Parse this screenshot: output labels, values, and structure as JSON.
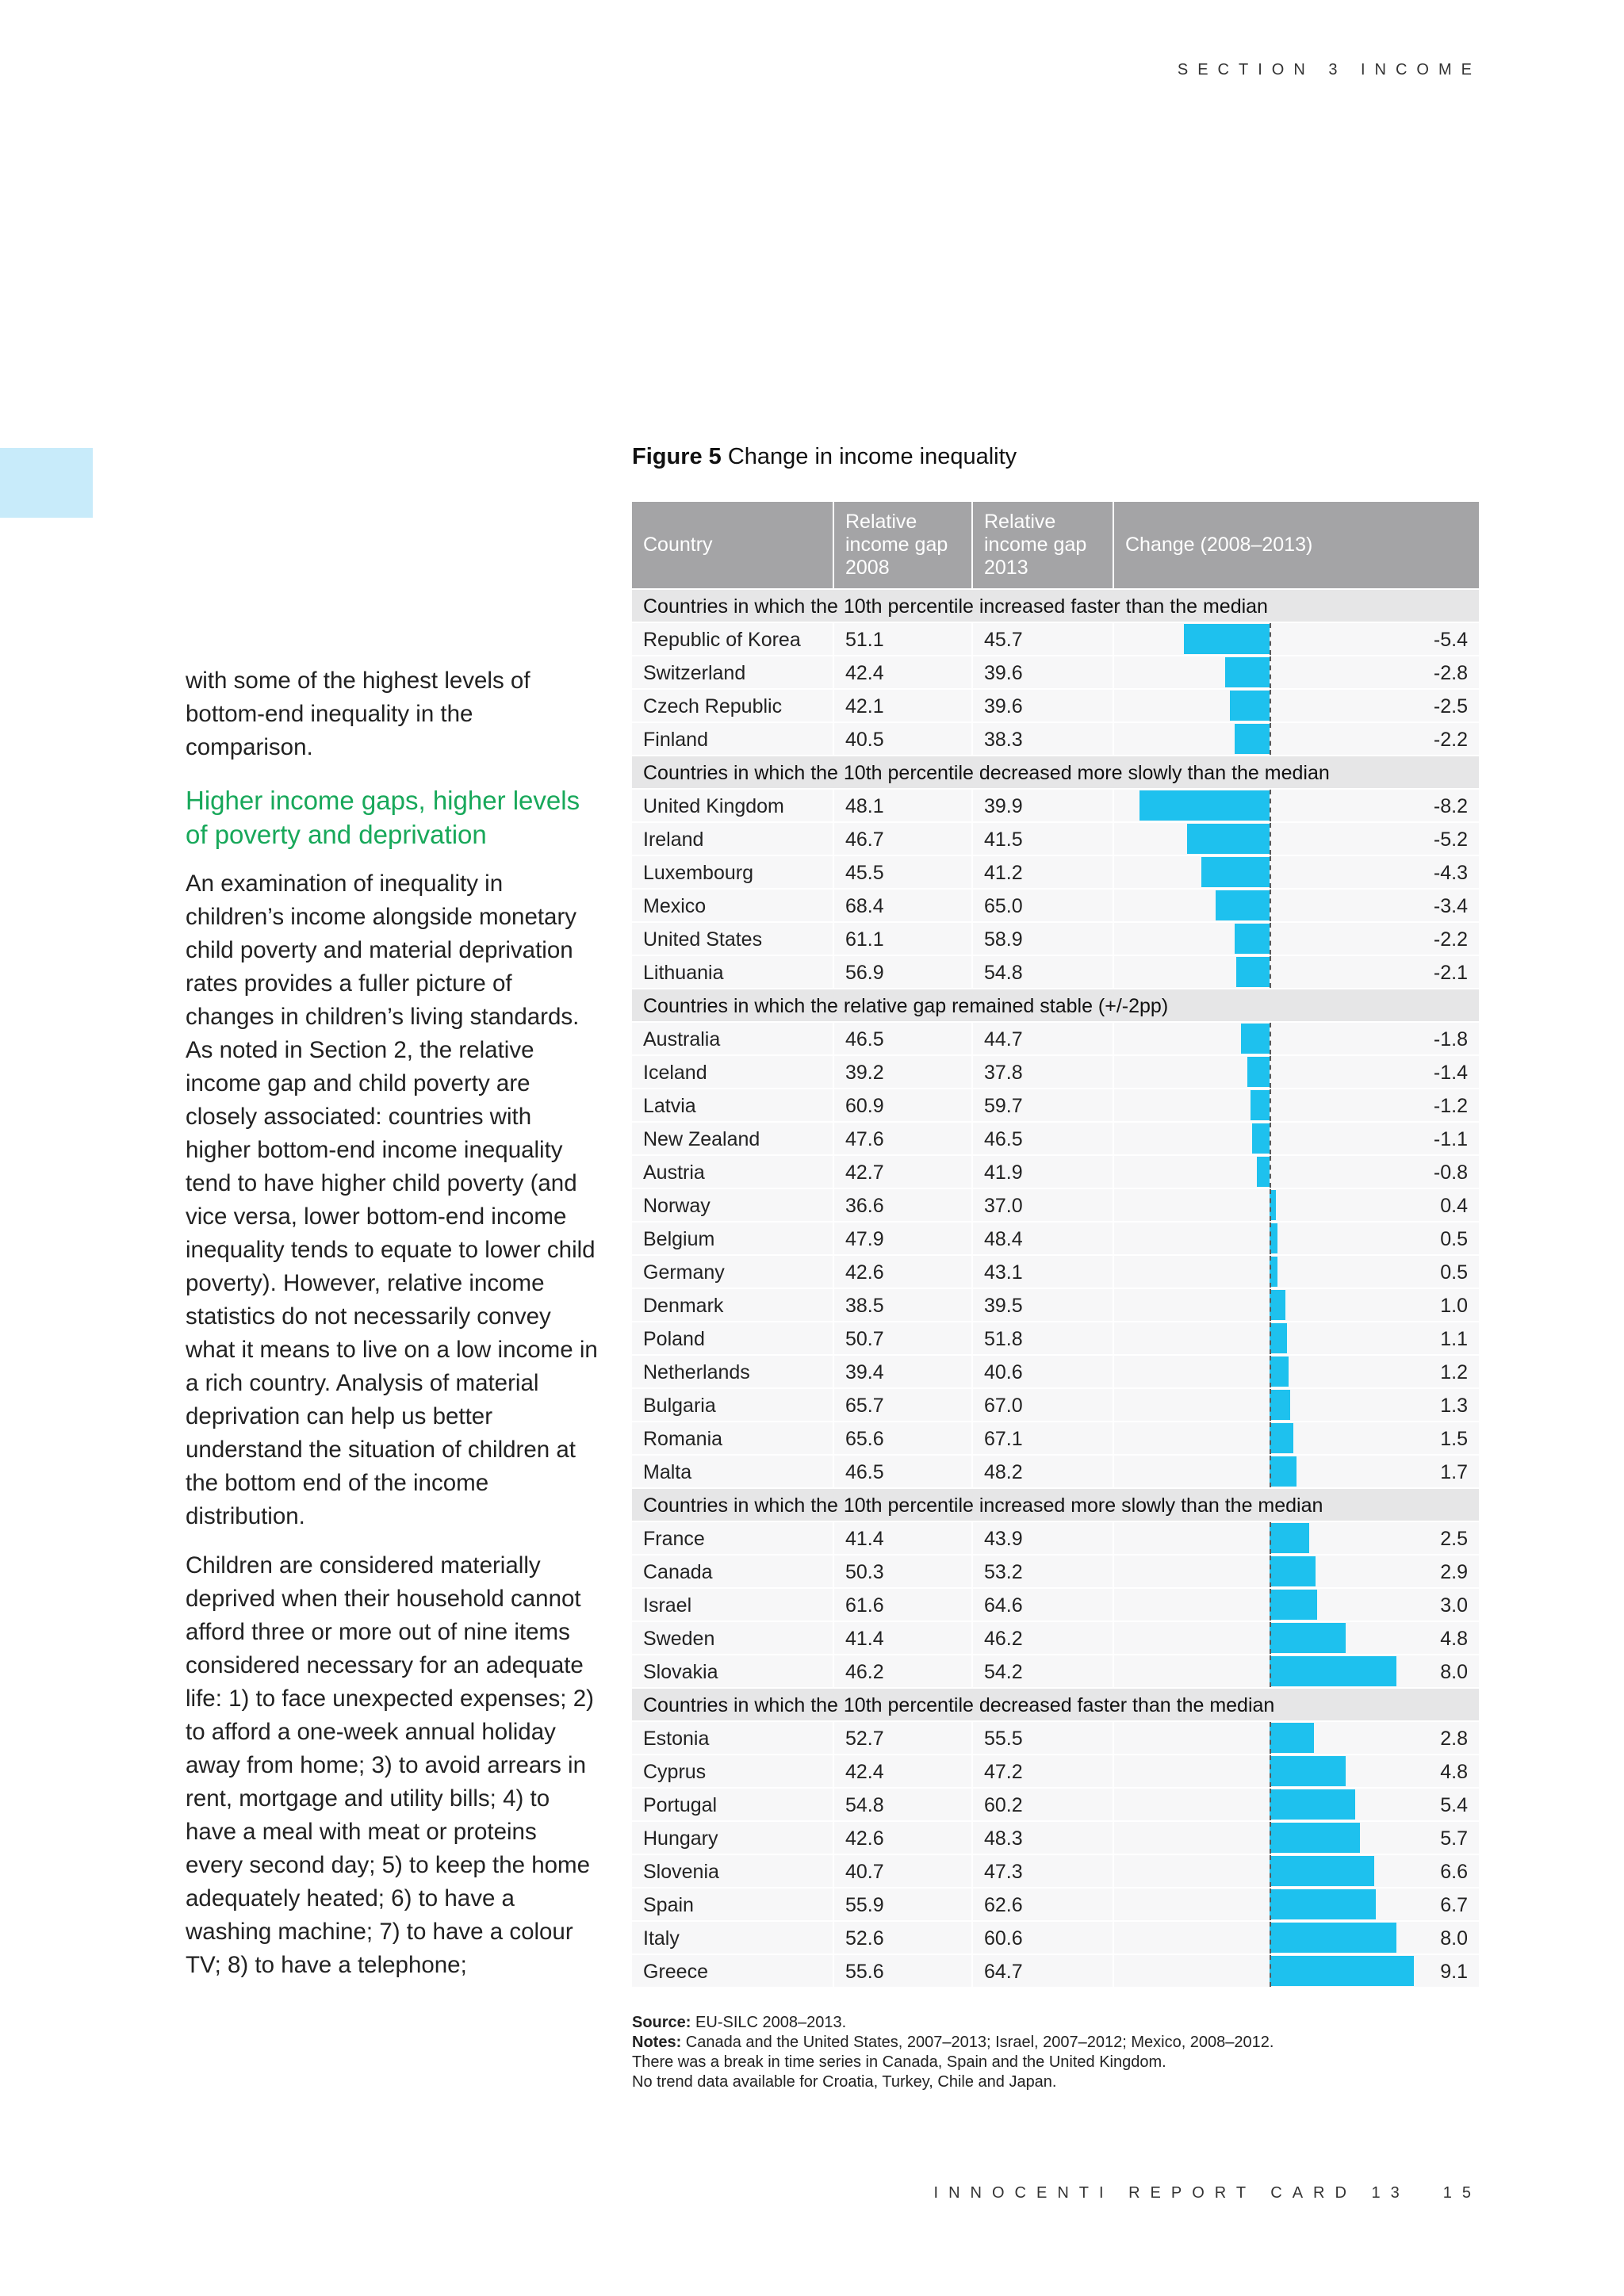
{
  "running_head": "SECTION 3 INCOME",
  "body_text": {
    "p1": "with some of the highest levels of bottom-end inequality in the comparison.",
    "heading": "Higher income gaps, higher levels of poverty and deprivation",
    "p2": "An examination of inequality in children’s income alongside monetary child poverty and material deprivation rates provides a fuller picture of changes in children’s living standards. As noted in Section 2, the relative income gap and child poverty are closely associated: countries with higher bottom-end income inequality tend to have higher child poverty (and vice versa, lower bottom-end income inequality tends to equate to lower child poverty). However, relative income statistics do not necessarily convey what it means to live on a low income in a rich country. Analysis of material deprivation can help us better understand the situation of children at the bottom end of the income distribution.",
    "p3": "Children are considered materially deprived when their household cannot afford three or more out of nine items considered necessary for an adequate life: 1) to face unexpected expenses; 2) to afford a one-week annual holiday away from home; 3) to avoid arrears in rent, mortgage and utility bills; 4) to have a meal with meat or proteins every second day; 5) to keep the home adequately heated; 6) to have a washing machine; 7) to have a colour TV; 8) to have a telephone;"
  },
  "figure": {
    "label": "Figure 5",
    "title": "Change in income inequality"
  },
  "chart_data": {
    "type": "table",
    "title": "Change in income inequality",
    "columns": [
      "Country",
      "Relative income gap 2008",
      "Relative income gap 2013",
      "Change (2008–2013)"
    ],
    "bar_colour": "#1ec1ee",
    "groups": [
      {
        "label": "Countries in which the 10th percentile increased faster than the median",
        "rows": [
          {
            "country": "Republic of Korea",
            "gap2008": "51.1",
            "gap2013": "45.7",
            "change": "-5.4"
          },
          {
            "country": "Switzerland",
            "gap2008": "42.4",
            "gap2013": "39.6",
            "change": "-2.8"
          },
          {
            "country": "Czech Republic",
            "gap2008": "42.1",
            "gap2013": "39.6",
            "change": "-2.5"
          },
          {
            "country": "Finland",
            "gap2008": "40.5",
            "gap2013": "38.3",
            "change": "-2.2"
          }
        ]
      },
      {
        "label": "Countries in which the 10th percentile decreased more slowly than the median",
        "rows": [
          {
            "country": "United Kingdom",
            "gap2008": "48.1",
            "gap2013": "39.9",
            "change": "-8.2"
          },
          {
            "country": "Ireland",
            "gap2008": "46.7",
            "gap2013": "41.5",
            "change": "-5.2"
          },
          {
            "country": "Luxembourg",
            "gap2008": "45.5",
            "gap2013": "41.2",
            "change": "-4.3"
          },
          {
            "country": "Mexico",
            "gap2008": "68.4",
            "gap2013": "65.0",
            "change": "-3.4"
          },
          {
            "country": "United States",
            "gap2008": "61.1",
            "gap2013": "58.9",
            "change": "-2.2"
          },
          {
            "country": "Lithuania",
            "gap2008": "56.9",
            "gap2013": "54.8",
            "change": "-2.1"
          }
        ]
      },
      {
        "label": "Countries in which the relative gap remained stable (+/-2pp)",
        "rows": [
          {
            "country": "Australia",
            "gap2008": "46.5",
            "gap2013": "44.7",
            "change": "-1.8"
          },
          {
            "country": "Iceland",
            "gap2008": "39.2",
            "gap2013": "37.8",
            "change": "-1.4"
          },
          {
            "country": "Latvia",
            "gap2008": "60.9",
            "gap2013": "59.7",
            "change": "-1.2"
          },
          {
            "country": "New Zealand",
            "gap2008": "47.6",
            "gap2013": "46.5",
            "change": "-1.1"
          },
          {
            "country": "Austria",
            "gap2008": "42.7",
            "gap2013": "41.9",
            "change": "-0.8"
          },
          {
            "country": "Norway",
            "gap2008": "36.6",
            "gap2013": "37.0",
            "change": "0.4"
          },
          {
            "country": "Belgium",
            "gap2008": "47.9",
            "gap2013": "48.4",
            "change": "0.5"
          },
          {
            "country": "Germany",
            "gap2008": "42.6",
            "gap2013": "43.1",
            "change": "0.5"
          },
          {
            "country": "Denmark",
            "gap2008": "38.5",
            "gap2013": "39.5",
            "change": "1.0"
          },
          {
            "country": "Poland",
            "gap2008": "50.7",
            "gap2013": "51.8",
            "change": "1.1"
          },
          {
            "country": "Netherlands",
            "gap2008": "39.4",
            "gap2013": "40.6",
            "change": "1.2"
          },
          {
            "country": "Bulgaria",
            "gap2008": "65.7",
            "gap2013": "67.0",
            "change": "1.3"
          },
          {
            "country": "Romania",
            "gap2008": "65.6",
            "gap2013": "67.1",
            "change": "1.5"
          },
          {
            "country": "Malta",
            "gap2008": "46.5",
            "gap2013": "48.2",
            "change": "1.7"
          }
        ]
      },
      {
        "label": "Countries in which the 10th percentile increased more slowly than the median",
        "rows": [
          {
            "country": "France",
            "gap2008": "41.4",
            "gap2013": "43.9",
            "change": "2.5"
          },
          {
            "country": "Canada",
            "gap2008": "50.3",
            "gap2013": "53.2",
            "change": "2.9"
          },
          {
            "country": "Israel",
            "gap2008": "61.6",
            "gap2013": "64.6",
            "change": "3.0"
          },
          {
            "country": "Sweden",
            "gap2008": "41.4",
            "gap2013": "46.2",
            "change": "4.8"
          },
          {
            "country": "Slovakia",
            "gap2008": "46.2",
            "gap2013": "54.2",
            "change": "8.0"
          }
        ]
      },
      {
        "label": "Countries in which the 10th percentile decreased faster than the median",
        "rows": [
          {
            "country": "Estonia",
            "gap2008": "52.7",
            "gap2013": "55.5",
            "change": "2.8"
          },
          {
            "country": "Cyprus",
            "gap2008": "42.4",
            "gap2013": "47.2",
            "change": "4.8"
          },
          {
            "country": "Portugal",
            "gap2008": "54.8",
            "gap2013": "60.2",
            "change": "5.4"
          },
          {
            "country": "Hungary",
            "gap2008": "42.6",
            "gap2013": "48.3",
            "change": "5.7"
          },
          {
            "country": "Slovenia",
            "gap2008": "40.7",
            "gap2013": "47.3",
            "change": "6.6"
          },
          {
            "country": "Spain",
            "gap2008": "55.9",
            "gap2013": "62.6",
            "change": "6.7"
          },
          {
            "country": "Italy",
            "gap2008": "52.6",
            "gap2013": "60.6",
            "change": "8.0"
          },
          {
            "country": "Greece",
            "gap2008": "55.6",
            "gap2013": "64.7",
            "change": "9.1"
          }
        ]
      }
    ]
  },
  "source_notes": {
    "source_label": "Source:",
    "source_text": "EU-SILC 2008–2013.",
    "notes_label": "Notes:",
    "notes_line1": "Canada and the United States, 2007–2013; Israel, 2007–2012; Mexico, 2008–2012.",
    "notes_line2": "There was a break in time series in Canada, Spain and the United Kingdom.",
    "notes_line3": "No trend data available for Croatia, Turkey, Chile and Japan."
  },
  "footer": {
    "title": "INNOCENTI REPORT CARD 13",
    "page": "15"
  }
}
